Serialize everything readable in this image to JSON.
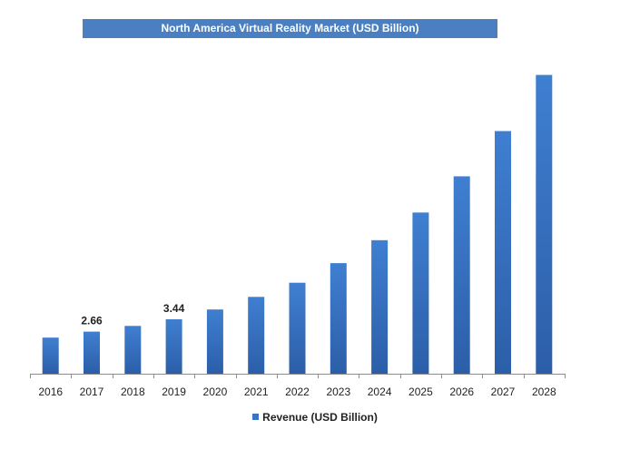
{
  "chart_data": {
    "type": "bar",
    "title": "North America Virtual Reality Market (USD Billion)",
    "categories": [
      "2016",
      "2017",
      "2018",
      "2019",
      "2020",
      "2021",
      "2022",
      "2023",
      "2024",
      "2025",
      "2026",
      "2027",
      "2028"
    ],
    "series": [
      {
        "name": "Revenue (USD Billion)",
        "values": [
          2.28,
          2.66,
          3.02,
          3.44,
          4.06,
          4.86,
          5.75,
          6.99,
          8.44,
          10.19,
          12.48,
          15.34,
          18.89
        ],
        "color": "#3a74c4"
      }
    ],
    "data_labels": {
      "2017": "2.66",
      "2019": "3.44"
    },
    "ylim": [
      0,
      19.5
    ],
    "legend_position": "bottom",
    "grid": false
  }
}
